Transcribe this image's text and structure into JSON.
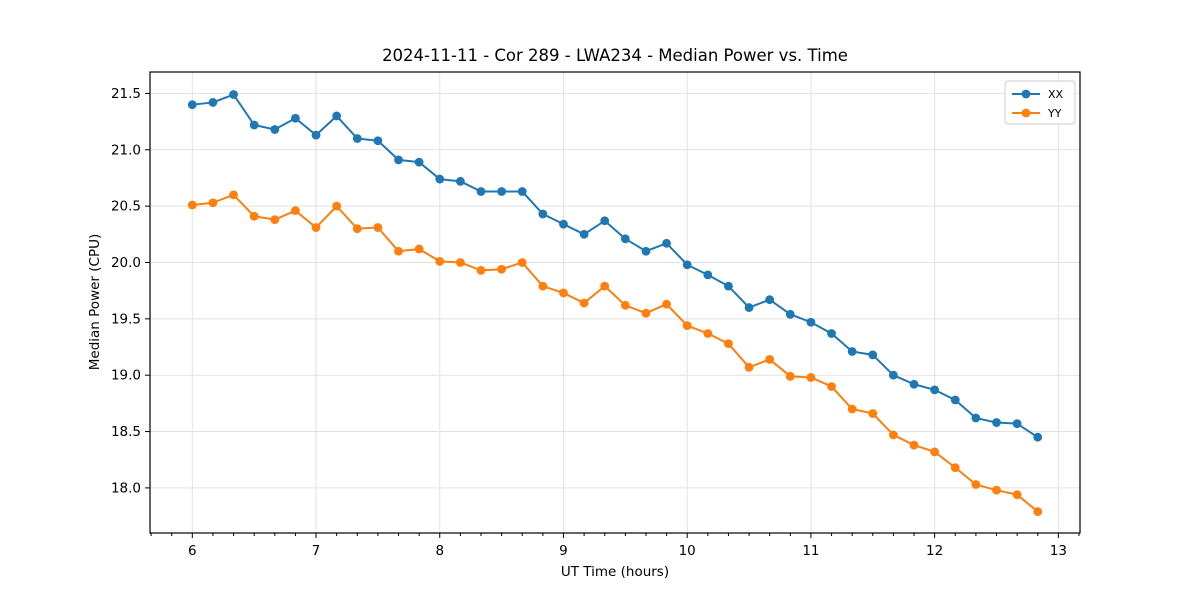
{
  "figure": {
    "title": "2024-11-11 - Cor 289 - LWA234 - Median Power vs. Time",
    "xlabel": "UT Time (hours)",
    "ylabel": "Median Power (CPU)"
  },
  "legend": {
    "position": "upper right",
    "entries": [
      {
        "label": "XX",
        "color": "#1f77b4"
      },
      {
        "label": "YY",
        "color": "#ff7f0e"
      }
    ]
  },
  "chart_data": {
    "type": "line",
    "title": "2024-11-11 - Cor 289 - LWA234 - Median Power vs. Time",
    "xlabel": "UT Time (hours)",
    "ylabel": "Median Power (CPU)",
    "grid": true,
    "legend_position": "upper right",
    "xlim": [
      5.658,
      13.175
    ],
    "ylim": [
      17.6,
      21.69
    ],
    "xticks": [
      6,
      7,
      8,
      9,
      10,
      11,
      12,
      13
    ],
    "yticks": [
      18.0,
      18.5,
      19.0,
      19.5,
      20.0,
      20.5,
      21.0,
      21.5
    ],
    "minor_xtick_step": 0.16667,
    "x": [
      6.0,
      6.1667,
      6.3333,
      6.5,
      6.6667,
      6.8333,
      7.0,
      7.1667,
      7.3333,
      7.5,
      7.6667,
      7.8333,
      8.0,
      8.1667,
      8.3333,
      8.5,
      8.6667,
      8.8333,
      9.0,
      9.1667,
      9.3333,
      9.5,
      9.6667,
      9.8333,
      10.0,
      10.1667,
      10.3333,
      10.5,
      10.6667,
      10.8333,
      11.0,
      11.1667,
      11.3333,
      11.5,
      11.6667,
      11.8333,
      12.0,
      12.1667,
      12.3333,
      12.5,
      12.6667,
      12.8333
    ],
    "series": [
      {
        "name": "XX",
        "color": "#1f77b4",
        "marker": "circle",
        "values": [
          21.4,
          21.42,
          21.49,
          21.22,
          21.18,
          21.28,
          21.13,
          21.3,
          21.1,
          21.08,
          20.91,
          20.89,
          20.74,
          20.72,
          20.63,
          20.63,
          20.63,
          20.43,
          20.34,
          20.25,
          20.37,
          20.21,
          20.1,
          20.17,
          19.98,
          19.89,
          19.79,
          19.6,
          19.67,
          19.54,
          19.47,
          19.37,
          19.21,
          19.18,
          19.0,
          18.92,
          18.87,
          18.78,
          18.62,
          18.58,
          18.57,
          18.45
        ]
      },
      {
        "name": "YY",
        "color": "#ff7f0e",
        "marker": "circle",
        "values": [
          20.51,
          20.53,
          20.6,
          20.41,
          20.38,
          20.46,
          20.31,
          20.5,
          20.3,
          20.31,
          20.1,
          20.12,
          20.01,
          20.0,
          19.93,
          19.94,
          20.0,
          19.79,
          19.73,
          19.64,
          19.79,
          19.62,
          19.55,
          19.63,
          19.44,
          19.37,
          19.28,
          19.07,
          19.14,
          18.99,
          18.98,
          18.9,
          18.7,
          18.66,
          18.47,
          18.38,
          18.32,
          18.18,
          18.03,
          17.98,
          17.94,
          17.79
        ]
      }
    ]
  }
}
